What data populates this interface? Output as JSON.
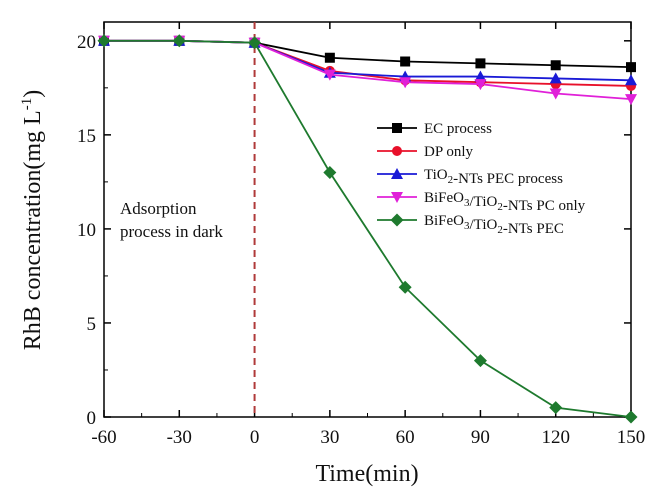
{
  "chart_data": {
    "type": "line",
    "title": "",
    "xlabel": "Time(min)",
    "ylabel": "RhB concentration(mg L-1)",
    "xlim": [
      -60,
      150
    ],
    "ylim": [
      0,
      21
    ],
    "xticks": [
      "-60",
      "-30",
      "0",
      "30",
      "60",
      "90",
      "120",
      "150"
    ],
    "yticks": [
      "0",
      "5",
      "10",
      "15",
      "20"
    ],
    "legend_position": "center-right",
    "grid": false,
    "vertical_reference_line": {
      "x": 0,
      "style": "dashed",
      "color": "#b03a3a"
    },
    "annotation": {
      "line1": "Adsorption",
      "line2": "process in dark"
    },
    "series": [
      {
        "name": "EC process",
        "color": "#000000",
        "marker": "square",
        "x": [
          -60,
          -30,
          0,
          30,
          60,
          90,
          120,
          150
        ],
        "y": [
          20.0,
          20.0,
          19.9,
          19.1,
          18.9,
          18.8,
          18.7,
          18.6
        ]
      },
      {
        "name": "DP only",
        "color": "#e8102a",
        "marker": "circle",
        "x": [
          -60,
          -30,
          0,
          30,
          60,
          90,
          120,
          150
        ],
        "y": [
          20.0,
          20.0,
          19.9,
          18.4,
          17.9,
          17.8,
          17.7,
          17.6
        ]
      },
      {
        "name": "TiO2-NTs PEC process",
        "color": "#1a1ad6",
        "marker": "triangle-up",
        "x": [
          -60,
          -30,
          0,
          30,
          60,
          90,
          120,
          150
        ],
        "y": [
          20.0,
          20.0,
          19.9,
          18.3,
          18.1,
          18.1,
          18.0,
          17.9
        ]
      },
      {
        "name": "BiFeO3/TiO2-NTs PC only",
        "color": "#e020d8",
        "marker": "triangle-down",
        "x": [
          -60,
          -30,
          0,
          30,
          60,
          90,
          120,
          150
        ],
        "y": [
          20.0,
          20.0,
          19.9,
          18.2,
          17.8,
          17.7,
          17.2,
          16.9
        ]
      },
      {
        "name": "BiFeO3/TiO2-NTs PEC",
        "color": "#1e7a2e",
        "marker": "diamond",
        "x": [
          -60,
          -30,
          0,
          30,
          60,
          90,
          120,
          150
        ],
        "y": [
          20.0,
          20.0,
          19.9,
          13.0,
          6.9,
          3.0,
          0.5,
          0.0
        ]
      }
    ]
  }
}
